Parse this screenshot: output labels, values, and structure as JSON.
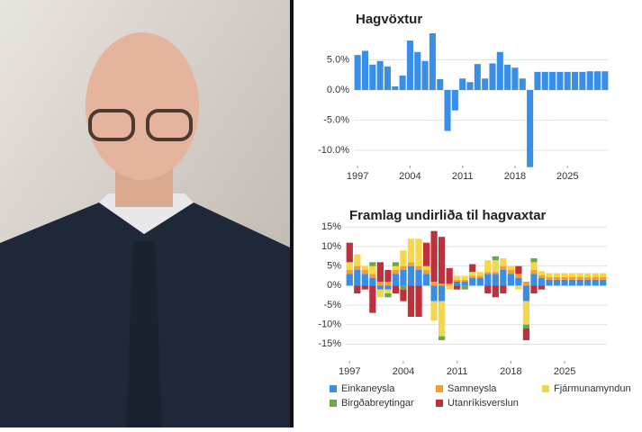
{
  "chart_data": [
    {
      "type": "bar",
      "title": "Hagvöxtur",
      "color": "#3a8ee6",
      "grid": true,
      "x": [
        1997,
        1998,
        1999,
        2000,
        2001,
        2002,
        2003,
        2004,
        2005,
        2006,
        2007,
        2008,
        2009,
        2010,
        2011,
        2012,
        2013,
        2014,
        2015,
        2016,
        2017,
        2018,
        2019,
        2020,
        2021,
        2022,
        2023,
        2024,
        2025,
        2026,
        2027,
        2028,
        2029,
        2030
      ],
      "values": [
        5.8,
        6.5,
        4.2,
        4.8,
        3.9,
        0.6,
        2.4,
        8.2,
        6.3,
        4.8,
        9.4,
        1.8,
        -6.8,
        -3.4,
        1.9,
        1.3,
        4.3,
        1.9,
        4.4,
        6.3,
        4.2,
        3.7,
        1.9,
        -12.8,
        3.0,
        3.0,
        3.0,
        3.0,
        3.0,
        3.0,
        3.0,
        3.1,
        3.1,
        3.1
      ],
      "xlim": [
        1996.5,
        2030.5
      ],
      "xticks": [
        1997,
        2004,
        2011,
        2018,
        2025
      ],
      "ylim": [
        -13,
        10
      ],
      "yticks": [
        {
          "value": -10,
          "label": "-10.0%"
        },
        {
          "value": -5,
          "label": "-5.0%"
        },
        {
          "value": 0,
          "label": "0.0%"
        },
        {
          "value": 5,
          "label": "5.0%"
        }
      ]
    },
    {
      "type": "stacked_bar",
      "title": "Framlag undirliða til hagvaxtar",
      "grid": true,
      "x": [
        1997,
        1998,
        1999,
        2000,
        2001,
        2002,
        2003,
        2004,
        2005,
        2006,
        2007,
        2008,
        2009,
        2010,
        2011,
        2012,
        2013,
        2014,
        2015,
        2016,
        2017,
        2018,
        2019,
        2020,
        2021,
        2022,
        2023,
        2024,
        2025,
        2026,
        2027,
        2028,
        2029,
        2030
      ],
      "series": [
        {
          "name": "Einkaneysla",
          "color": "#3a8ee6",
          "values": [
            3,
            4,
            3,
            2,
            -1,
            -1,
            3,
            4,
            5,
            4,
            3,
            -4,
            -4,
            0,
            1,
            1,
            2,
            2,
            3,
            3,
            4,
            3,
            2,
            -4,
            3,
            2,
            1.5,
            1.5,
            1.5,
            1.5,
            1.5,
            1.5,
            1.5,
            1.5
          ]
        },
        {
          "name": "Samneysla",
          "color": "#f0a030",
          "values": [
            1,
            1,
            1,
            1,
            1,
            1,
            1,
            1,
            1,
            1,
            1,
            1,
            0.5,
            0.5,
            0.5,
            0.5,
            0.5,
            0.5,
            0.5,
            0.5,
            1,
            1,
            1,
            1,
            1,
            0.7,
            0.7,
            0.7,
            0.7,
            0.7,
            0.7,
            0.7,
            0.7,
            0.7
          ]
        },
        {
          "name": "Fjármunamyndun",
          "color": "#f5d84a",
          "values": [
            2,
            3,
            1,
            2,
            -2,
            -1,
            1,
            4,
            6,
            7,
            1,
            -5,
            -9,
            -1,
            1,
            1,
            1,
            1,
            3,
            3,
            2,
            1,
            -1,
            -6,
            2,
            1,
            1,
            1,
            1,
            1,
            1,
            1,
            1,
            1
          ]
        },
        {
          "name": "Birgðabreytingar",
          "color": "#6aa84f",
          "values": [
            0,
            0,
            0,
            1,
            0,
            -1,
            1,
            -1,
            0,
            0,
            0,
            0,
            -1,
            0,
            0,
            -1,
            0,
            0,
            0,
            1,
            0,
            0,
            0,
            -1,
            1,
            0,
            0,
            0,
            0,
            0,
            0,
            0,
            0,
            0
          ]
        },
        {
          "name": "Utanríkisverslun",
          "color": "#c0303a",
          "values": [
            5,
            -2,
            -1,
            -7,
            5,
            3,
            -2,
            -3,
            -8,
            -8,
            6,
            13,
            12,
            4,
            -1,
            0,
            2,
            0,
            -2,
            -3,
            -2,
            0,
            2,
            -3,
            -2,
            -1,
            0,
            0,
            0,
            0,
            0,
            0,
            0,
            0
          ]
        }
      ],
      "xlim": [
        1996.5,
        2030.5
      ],
      "xticks": [
        1997,
        2004,
        2011,
        2018,
        2025
      ],
      "ylim": [
        -20,
        16
      ],
      "yticks": [
        {
          "value": -15,
          "label": "-15%"
        },
        {
          "value": -10,
          "label": "-10%"
        },
        {
          "value": -5,
          "label": "-5%"
        },
        {
          "value": 0,
          "label": "0%"
        },
        {
          "value": 5,
          "label": "5%"
        },
        {
          "value": 10,
          "label": "10%"
        },
        {
          "value": 15,
          "label": "15%"
        }
      ]
    }
  ]
}
